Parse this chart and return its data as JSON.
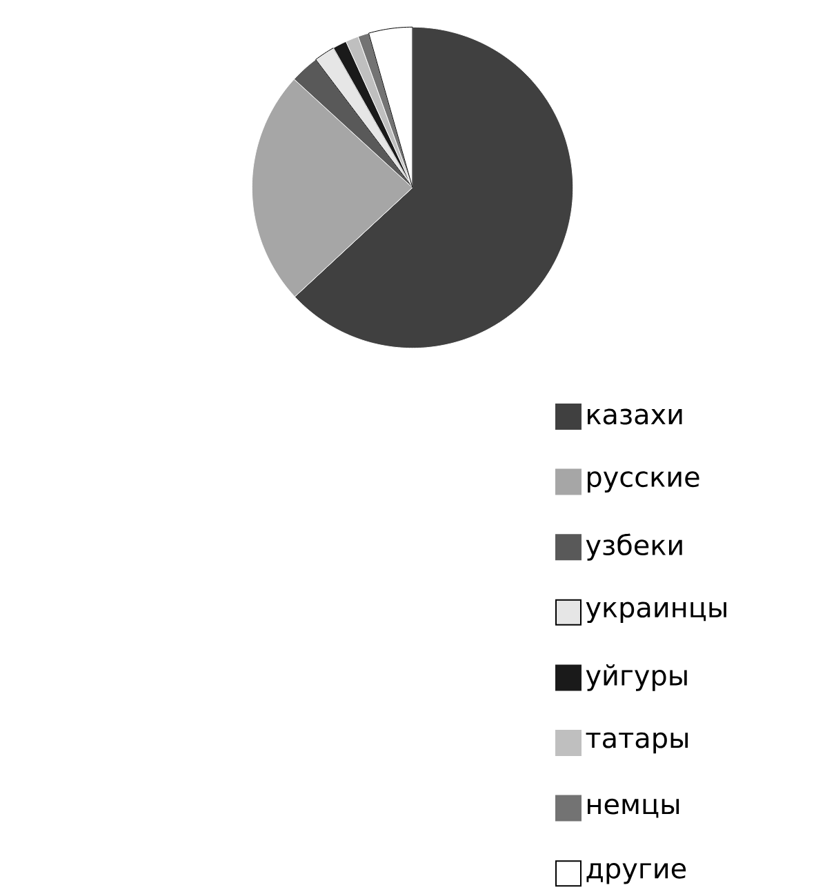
{
  "chart_data": {
    "type": "pie",
    "categories": [
      "казахи",
      "русские",
      "узбеки",
      "украинцы",
      "уйгуры",
      "татары",
      "немцы",
      "другие"
    ],
    "values": [
      63.1,
      23.7,
      2.9,
      2.1,
      1.4,
      1.3,
      1.1,
      4.4
    ],
    "colors": [
      "#404040",
      "#a6a6a6",
      "#595959",
      "#e6e6e6",
      "#1a1a1a",
      "#bfbfbf",
      "#737373",
      "#ffffff"
    ],
    "legend": "bottom right"
  }
}
